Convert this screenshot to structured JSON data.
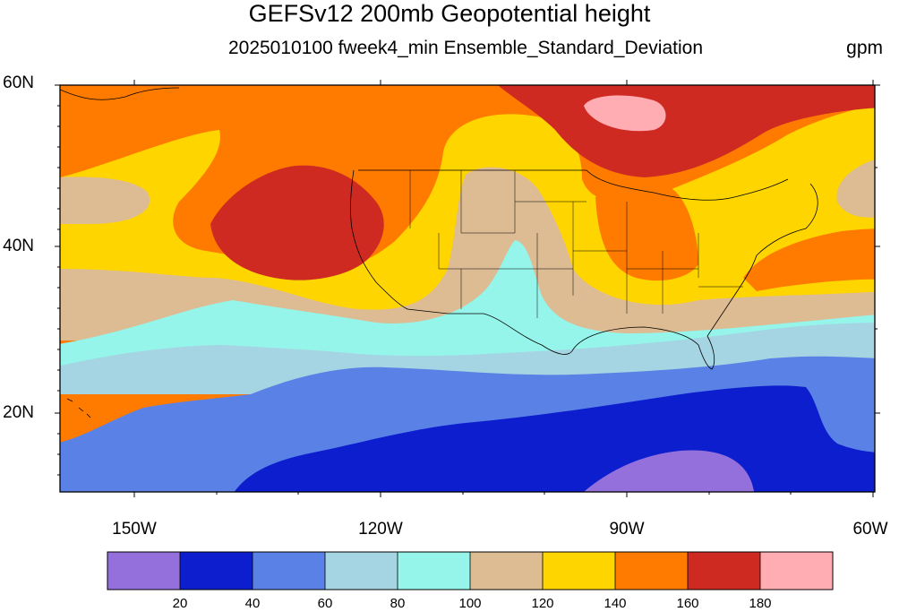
{
  "header": {
    "title": "GEFSv12 200mb Geopotential height",
    "subtitle": "2025010100 fweek4_min Ensemble_Standard_Deviation",
    "units": "gpm"
  },
  "axes": {
    "lat_labels": [
      {
        "text": "60N",
        "value": 60
      },
      {
        "text": "40N",
        "value": 40
      },
      {
        "text": "20N",
        "value": 20
      }
    ],
    "lon_labels": [
      {
        "text": "150W",
        "value": -150
      },
      {
        "text": "120W",
        "value": -120
      },
      {
        "text": "90W",
        "value": -90
      },
      {
        "text": "60W",
        "value": -60
      }
    ]
  },
  "colorbar": {
    "colors": [
      "#9370db",
      "#0c1ecd",
      "#5a82e6",
      "#a5d4e3",
      "#96f5ea",
      "#ddbb93",
      "#ffd500",
      "#ff7b00",
      "#cf2a21",
      "#ffadb3"
    ],
    "labels": [
      "20",
      "40",
      "60",
      "80",
      "100",
      "120",
      "140",
      "160",
      "180"
    ]
  }
}
